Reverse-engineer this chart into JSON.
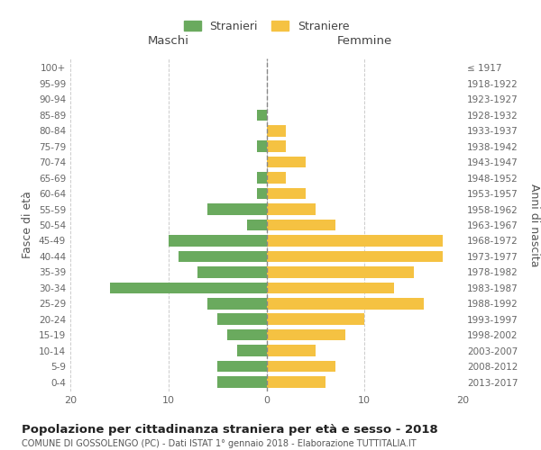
{
  "age_groups": [
    "0-4",
    "5-9",
    "10-14",
    "15-19",
    "20-24",
    "25-29",
    "30-34",
    "35-39",
    "40-44",
    "45-49",
    "50-54",
    "55-59",
    "60-64",
    "65-69",
    "70-74",
    "75-79",
    "80-84",
    "85-89",
    "90-94",
    "95-99",
    "100+"
  ],
  "birth_years": [
    "2013-2017",
    "2008-2012",
    "2003-2007",
    "1998-2002",
    "1993-1997",
    "1988-1992",
    "1983-1987",
    "1978-1982",
    "1973-1977",
    "1968-1972",
    "1963-1967",
    "1958-1962",
    "1953-1957",
    "1948-1952",
    "1943-1947",
    "1938-1942",
    "1933-1937",
    "1928-1932",
    "1923-1927",
    "1918-1922",
    "≤ 1917"
  ],
  "males": [
    5,
    5,
    3,
    4,
    5,
    6,
    16,
    7,
    9,
    10,
    2,
    6,
    1,
    1,
    0,
    1,
    0,
    1,
    0,
    0,
    0
  ],
  "females": [
    6,
    7,
    5,
    8,
    10,
    16,
    13,
    15,
    18,
    18,
    7,
    5,
    4,
    2,
    4,
    2,
    2,
    0,
    0,
    0,
    0
  ],
  "male_color": "#6aaa5e",
  "female_color": "#f5c242",
  "title": "Popolazione per cittadinanza straniera per età e sesso - 2018",
  "subtitle": "COMUNE DI GOSSOLENGO (PC) - Dati ISTAT 1° gennaio 2018 - Elaborazione TUTTITALIA.IT",
  "ylabel_left": "Fasce di età",
  "ylabel_right": "Anni di nascita",
  "xlabel_left": "Maschi",
  "xlabel_right": "Femmine",
  "legend_male": "Stranieri",
  "legend_female": "Straniere",
  "xlim": 20,
  "background_color": "#ffffff",
  "grid_color": "#cccccc"
}
